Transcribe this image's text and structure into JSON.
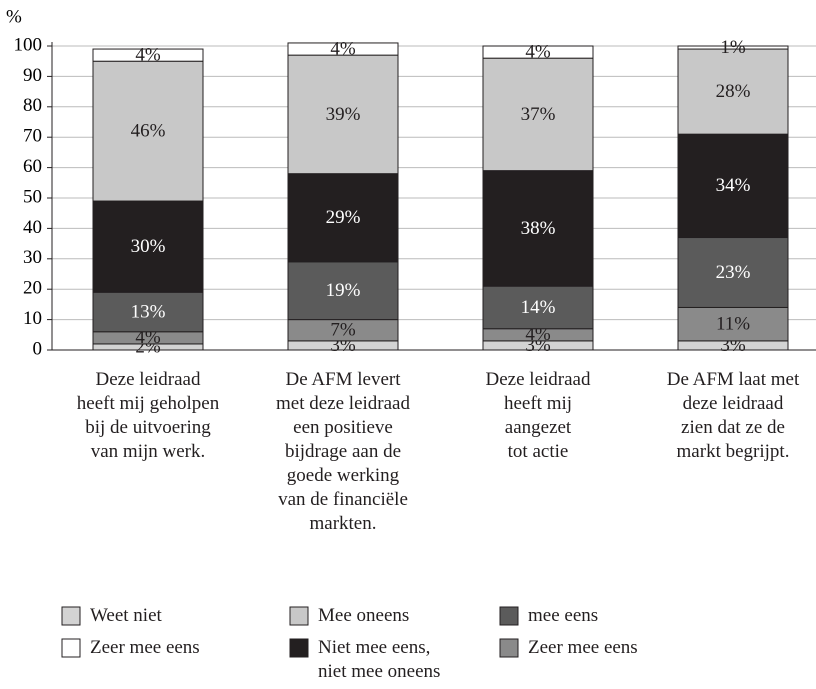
{
  "chart_data": {
    "type": "stacked_bar",
    "y_label": "%",
    "categories": [
      "Deze leidraad\nheeft mij geholpen\nbij de uitvoering\nvan mijn werk.",
      "De AFM levert\nmet deze leidraad\neen positieve\nbijdrage aan de\ngoede werking\nvan de financiële\nmarkten.",
      "Deze leidraad\nheeft mij\naangezet\ntot actie",
      "De AFM laat met\ndeze leidraad\nzien dat ze de\nmarkt begrijpt."
    ],
    "series": [
      {
        "name": "Weet niet",
        "color": "#d3d3d3",
        "values": [
          2,
          3,
          3,
          3
        ],
        "value_labels": [
          "2%",
          "3%",
          "3%",
          "3%"
        ]
      },
      {
        "name": "Zeer mee eens",
        "color": "#8a8a8a",
        "values": [
          4,
          7,
          4,
          11
        ],
        "value_labels": [
          "4%",
          "7%",
          "4%",
          "11%"
        ]
      },
      {
        "name": "mee eens",
        "color": "#5b5b5b",
        "values": [
          13,
          19,
          14,
          23
        ],
        "value_labels": [
          "13%",
          "19%",
          "14%",
          "23%"
        ]
      },
      {
        "name": "Niet mee eens,\nniet mee oneens",
        "color": "#231f20",
        "values": [
          30,
          29,
          38,
          34
        ],
        "value_labels": [
          "30%",
          "29%",
          "38%",
          "34%"
        ]
      },
      {
        "name": "Mee oneens",
        "color": "#c8c8c8",
        "values": [
          46,
          39,
          37,
          28
        ],
        "value_labels": [
          "46%",
          "39%",
          "37%",
          "28%"
        ]
      },
      {
        "name": "Zeer mee eens",
        "color": "#ffffff",
        "values": [
          4,
          4,
          4,
          1
        ],
        "value_labels": [
          "4%",
          "4%",
          "4%",
          "1%"
        ]
      }
    ],
    "ylim": [
      0,
      100
    ],
    "yticks": [
      0,
      10,
      20,
      30,
      40,
      50,
      60,
      70,
      80,
      90,
      100
    ],
    "grid": true
  }
}
